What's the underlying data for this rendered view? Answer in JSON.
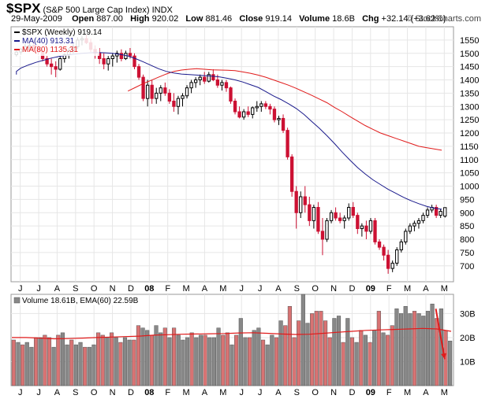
{
  "header": {
    "symbol": "$SPX",
    "name": "(S&P 500 Large Cap Index)",
    "exchange": "INDX",
    "date": "29-May-2009",
    "open_label": "Open",
    "open": "887.00",
    "high_label": "High",
    "high": "920.02",
    "low_label": "Low",
    "low": "881.46",
    "close_label": "Close",
    "close": "919.14",
    "volume_label": "Volume",
    "volume": "18.6B",
    "chg_label": "Chg",
    "chg": "+32.14 (+3.62%)",
    "copyright": "© StockCharts.com"
  },
  "colors": {
    "up": "#000000",
    "down": "#cc1133",
    "ma40": "#1a1a8c",
    "ma80": "#e01b1b",
    "vol_up": "#888888",
    "vol_down": "#d87373",
    "arrow": "#e01b1b",
    "grid": "#e6e6e6",
    "frame": "#999999"
  },
  "chart_data": [
    {
      "type": "candlestick",
      "title": "$SPX (Weekly) 919.14",
      "legend": [
        "$SPX (Weekly) 919.14",
        "MA(40) 913.31",
        "MA(80) 1135.31"
      ],
      "ylim": [
        640,
        1600
      ],
      "y_ticks": [
        700,
        750,
        800,
        850,
        900,
        950,
        1000,
        1050,
        1100,
        1150,
        1200,
        1250,
        1300,
        1350,
        1400,
        1450,
        1500,
        1550
      ],
      "x_ticks": [
        "J",
        "J",
        "A",
        "S",
        "O",
        "N",
        "D",
        "08",
        "F",
        "M",
        "A",
        "M",
        "J",
        "J",
        "A",
        "S",
        "O",
        "N",
        "D",
        "09",
        "F",
        "M",
        "A",
        "M"
      ],
      "ohlc": [
        [
          1495,
          1510,
          1490,
          1505
        ],
        [
          1505,
          1520,
          1495,
          1515
        ],
        [
          1515,
          1535,
          1505,
          1525
        ],
        [
          1525,
          1540,
          1510,
          1530
        ],
        [
          1530,
          1545,
          1515,
          1520
        ],
        [
          1520,
          1530,
          1495,
          1505
        ],
        [
          1505,
          1515,
          1470,
          1480
        ],
        [
          1480,
          1490,
          1450,
          1460
        ],
        [
          1460,
          1480,
          1420,
          1450
        ],
        [
          1450,
          1470,
          1410,
          1440
        ],
        [
          1440,
          1490,
          1435,
          1480
        ],
        [
          1480,
          1500,
          1465,
          1495
        ],
        [
          1495,
          1520,
          1480,
          1510
        ],
        [
          1510,
          1535,
          1500,
          1525
        ],
        [
          1525,
          1560,
          1515,
          1550
        ],
        [
          1550,
          1565,
          1530,
          1555
        ],
        [
          1555,
          1570,
          1535,
          1540
        ],
        [
          1540,
          1555,
          1505,
          1515
        ],
        [
          1515,
          1530,
          1480,
          1500
        ],
        [
          1500,
          1520,
          1460,
          1480
        ],
        [
          1480,
          1500,
          1440,
          1460
        ],
        [
          1460,
          1490,
          1435,
          1480
        ],
        [
          1480,
          1500,
          1450,
          1490
        ],
        [
          1490,
          1510,
          1465,
          1500
        ],
        [
          1500,
          1515,
          1470,
          1480
        ],
        [
          1480,
          1510,
          1475,
          1500
        ],
        [
          1500,
          1520,
          1480,
          1490
        ],
        [
          1490,
          1500,
          1440,
          1450
        ],
        [
          1450,
          1460,
          1400,
          1410
        ],
        [
          1410,
          1420,
          1320,
          1330
        ],
        [
          1330,
          1400,
          1300,
          1380
        ],
        [
          1380,
          1400,
          1310,
          1330
        ],
        [
          1330,
          1370,
          1310,
          1350
        ],
        [
          1350,
          1380,
          1320,
          1370
        ],
        [
          1370,
          1390,
          1340,
          1350
        ],
        [
          1350,
          1365,
          1310,
          1320
        ],
        [
          1320,
          1350,
          1280,
          1300
        ],
        [
          1300,
          1340,
          1270,
          1330
        ],
        [
          1330,
          1350,
          1300,
          1340
        ],
        [
          1340,
          1380,
          1330,
          1370
        ],
        [
          1370,
          1400,
          1350,
          1390
        ],
        [
          1390,
          1410,
          1370,
          1400
        ],
        [
          1400,
          1420,
          1380,
          1410
        ],
        [
          1410,
          1430,
          1385,
          1395
        ],
        [
          1395,
          1430,
          1390,
          1420
        ],
        [
          1420,
          1440,
          1395,
          1400
        ],
        [
          1400,
          1420,
          1370,
          1380
        ],
        [
          1380,
          1400,
          1360,
          1390
        ],
        [
          1390,
          1400,
          1355,
          1370
        ],
        [
          1370,
          1375,
          1310,
          1320
        ],
        [
          1320,
          1330,
          1270,
          1280
        ],
        [
          1280,
          1300,
          1255,
          1260
        ],
        [
          1260,
          1290,
          1250,
          1280
        ],
        [
          1280,
          1300,
          1260,
          1270
        ],
        [
          1270,
          1300,
          1255,
          1295
        ],
        [
          1295,
          1320,
          1280,
          1300
        ],
        [
          1300,
          1320,
          1280,
          1310
        ],
        [
          1310,
          1320,
          1290,
          1300
        ],
        [
          1300,
          1310,
          1270,
          1290
        ],
        [
          1290,
          1300,
          1240,
          1250
        ],
        [
          1250,
          1265,
          1230,
          1255
        ],
        [
          1255,
          1270,
          1200,
          1210
        ],
        [
          1210,
          1220,
          1100,
          1110
        ],
        [
          1110,
          1120,
          960,
          980
        ],
        [
          980,
          1000,
          840,
          900
        ],
        [
          900,
          980,
          880,
          960
        ],
        [
          960,
          1000,
          900,
          930
        ],
        [
          930,
          960,
          850,
          870
        ],
        [
          870,
          930,
          840,
          920
        ],
        [
          920,
          940,
          820,
          830
        ],
        [
          830,
          880,
          740,
          800
        ],
        [
          800,
          880,
          790,
          870
        ],
        [
          870,
          910,
          860,
          900
        ],
        [
          900,
          920,
          870,
          880
        ],
        [
          880,
          900,
          860,
          870
        ],
        [
          870,
          890,
          840,
          880
        ],
        [
          880,
          935,
          870,
          920
        ],
        [
          920,
          940,
          880,
          890
        ],
        [
          890,
          900,
          820,
          840
        ],
        [
          840,
          860,
          810,
          850
        ],
        [
          850,
          870,
          800,
          830
        ],
        [
          830,
          880,
          820,
          870
        ],
        [
          870,
          880,
          780,
          790
        ],
        [
          790,
          800,
          760,
          770
        ],
        [
          770,
          780,
          720,
          740
        ],
        [
          740,
          760,
          670,
          690
        ],
        [
          690,
          720,
          676,
          710
        ],
        [
          710,
          770,
          700,
          760
        ],
        [
          760,
          800,
          750,
          790
        ],
        [
          790,
          840,
          780,
          830
        ],
        [
          830,
          860,
          820,
          850
        ],
        [
          850,
          870,
          830,
          860
        ],
        [
          860,
          880,
          840,
          870
        ],
        [
          870,
          900,
          860,
          890
        ],
        [
          890,
          920,
          880,
          910
        ],
        [
          910,
          930,
          900,
          920
        ],
        [
          920,
          930,
          880,
          890
        ],
        [
          890,
          915,
          880,
          905
        ],
        [
          887,
          920.02,
          881.46,
          919.14
        ]
      ],
      "ma40": [
        1420,
        1432,
        1444,
        1456,
        1466,
        1474,
        1482,
        1488,
        1493,
        1497,
        1500,
        1502,
        1503,
        1502,
        1500,
        1496,
        1490,
        1480,
        1468,
        1455,
        1442,
        1432,
        1426,
        1422,
        1420,
        1418,
        1416,
        1414,
        1411,
        1406,
        1400,
        1392,
        1382,
        1372,
        1356,
        1340,
        1326,
        1310,
        1292,
        1270,
        1244,
        1218,
        1190,
        1160,
        1128,
        1098,
        1070,
        1046,
        1024,
        1006,
        988,
        973,
        958,
        945,
        934,
        924,
        917,
        913
      ],
      "ma80": [
        1358,
        1372,
        1386,
        1398,
        1410,
        1422,
        1432,
        1437,
        1440,
        1442,
        1440,
        1438,
        1437,
        1436,
        1435,
        1430,
        1425,
        1418,
        1410,
        1400,
        1390,
        1380,
        1368,
        1355,
        1342,
        1328,
        1314,
        1296,
        1280,
        1262,
        1245,
        1228,
        1214,
        1200,
        1190,
        1180,
        1170,
        1160,
        1150,
        1145,
        1140,
        1135
      ]
    },
    {
      "type": "bar",
      "title": "Volume 18.61B, EMA(60) 22.59B",
      "legend": [
        "Volume 18.61B, EMA(60) 22.59B"
      ],
      "ylim": [
        0,
        38
      ],
      "y_ticks": [
        "10B",
        "20B",
        "30B"
      ],
      "y_tick_values": [
        10,
        20,
        30
      ],
      "values": [
        19,
        18,
        17,
        18,
        16,
        20,
        20,
        21,
        20,
        16,
        21,
        22,
        17,
        19,
        17,
        18,
        16,
        16,
        17,
        22,
        21,
        20,
        22,
        20,
        18,
        20,
        19,
        19,
        25,
        24,
        23,
        21,
        25,
        22,
        24,
        20,
        24,
        21,
        19,
        20,
        22,
        20,
        21,
        21,
        20,
        20,
        24,
        21,
        22,
        17,
        21,
        28,
        20,
        20,
        23,
        24,
        19,
        17,
        21,
        20,
        27,
        25,
        33,
        20,
        27,
        38,
        26,
        30,
        31,
        31,
        27,
        20,
        28,
        29,
        18,
        28,
        20,
        18,
        23,
        21,
        18,
        23,
        31,
        22,
        21,
        25,
        32,
        30,
        33,
        30,
        31,
        30,
        29,
        31,
        34,
        28,
        32,
        23,
        18.6
      ],
      "ema": [
        20,
        20,
        19.8,
        19.5,
        19.6,
        19.8,
        20,
        20.2,
        20.4,
        20.6,
        21,
        21.2,
        21.4,
        21.5,
        21.6,
        21.7,
        21.9,
        22,
        21.8,
        21.5,
        21.3,
        21.4,
        21.8,
        22.2,
        22.6,
        23,
        23.2,
        23.4,
        23.6,
        23.8,
        23.6,
        22.6
      ],
      "down_indices": [
        0,
        2,
        5,
        7,
        8,
        10,
        13,
        16,
        19,
        20,
        22,
        24,
        27,
        28,
        31,
        34,
        36,
        40,
        43,
        47,
        48,
        50,
        53,
        56,
        59,
        61,
        62,
        63,
        64,
        67,
        68,
        69,
        70,
        71,
        74,
        76,
        78,
        80,
        82,
        84,
        85,
        90,
        95,
        97
      ]
    }
  ],
  "volume_arrow": {
    "from": [
      32,
      96
    ],
    "to": [
      11,
      98
    ]
  }
}
